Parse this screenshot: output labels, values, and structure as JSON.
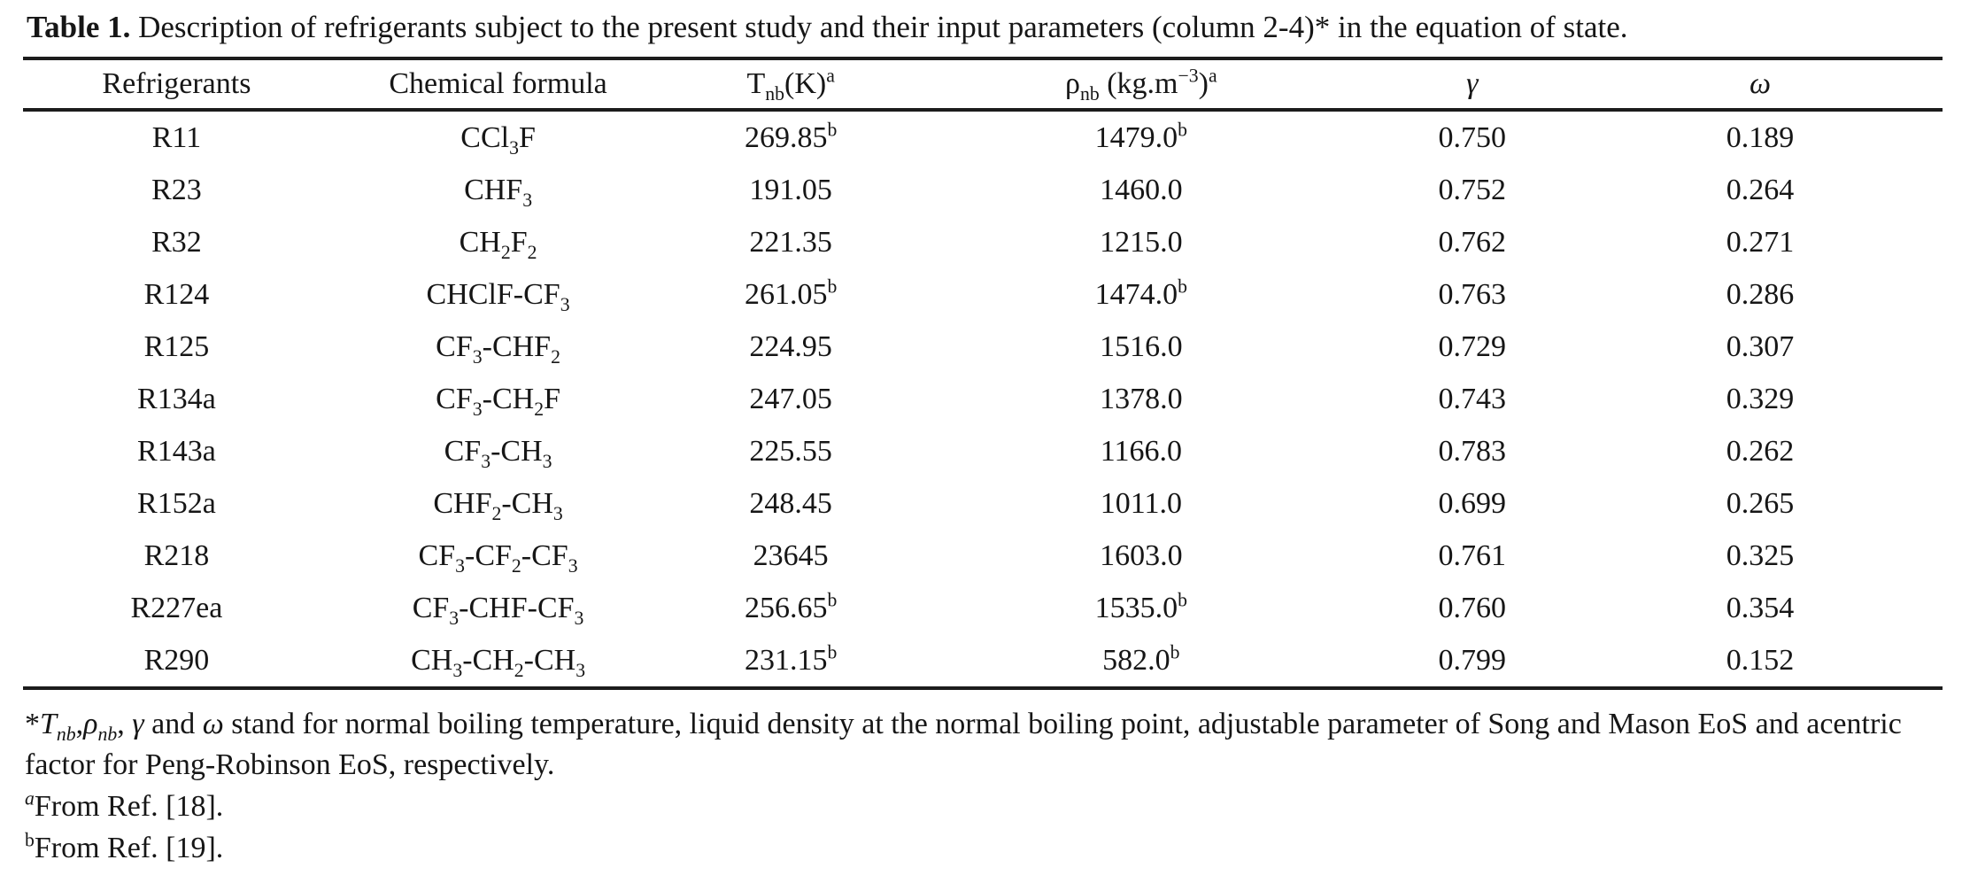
{
  "caption": {
    "label": "Table 1.",
    "text": " Description of refrigerants subject to the present study and their input parameters (column 2-4)* in the equation of state."
  },
  "table": {
    "columns": [
      "Refrigerants",
      "Chemical formula",
      "T_{nb}(K)^{a}",
      "ρ_{nb} (kg.m^{−3})^{a}",
      "~{γ}",
      "~{ω}"
    ],
    "rows": [
      [
        "R11",
        "CCl_{3}F",
        "269.85^{b}",
        "1479.0^{b}",
        "0.750",
        "0.189"
      ],
      [
        "R23",
        "CHF_{3}",
        "191.05",
        "1460.0",
        "0.752",
        "0.264"
      ],
      [
        "R32",
        "CH_{2}F_{2}",
        "221.35",
        "1215.0",
        "0.762",
        "0.271"
      ],
      [
        "R124",
        "CHClF-CF_{3}",
        "261.05^{b}",
        "1474.0^{b}",
        "0.763",
        "0.286"
      ],
      [
        "R125",
        "CF_{3}-CHF_{2}",
        "224.95",
        "1516.0",
        "0.729",
        "0.307"
      ],
      [
        "R134a",
        "CF_{3}-CH_{2}F",
        "247.05",
        "1378.0",
        "0.743",
        "0.329"
      ],
      [
        "R143a",
        "CF_{3}-CH_{3}",
        "225.55",
        "1166.0",
        "0.783",
        "0.262"
      ],
      [
        "R152a",
        "CHF_{2}-CH_{3}",
        "248.45",
        "1011.0",
        "0.699",
        "0.265"
      ],
      [
        "R218",
        "CF_{3}-CF_{2}-CF_{3}",
        "23645",
        "1603.0",
        "0.761",
        "0.325"
      ],
      [
        "R227ea",
        "CF_{3}-CHF-CF_{3}",
        "256.65^{b}",
        "1535.0^{b}",
        "0.760",
        "0.354"
      ],
      [
        "R290",
        "CH_{3}-CH_{2}-CH_{3}",
        "231.15^{b}",
        "582.0^{b}",
        "0.799",
        "0.152"
      ]
    ]
  },
  "footnotes": [
    "*~{T}_{~{nb}},~{ρ}_{~{nb}}, ~{γ} and ~{ω} stand for normal boiling temperature, liquid density at the normal boiling point, adjustable parameter of Song and Mason EoS and acentric factor for Peng-Robinson EoS, respectively.",
    "^{~{a}}From Ref. [18].",
    "^{b}From Ref. [19]."
  ],
  "colors": {
    "background": "#ffffff",
    "text": "#161616",
    "rule": "#1c1c1c"
  }
}
